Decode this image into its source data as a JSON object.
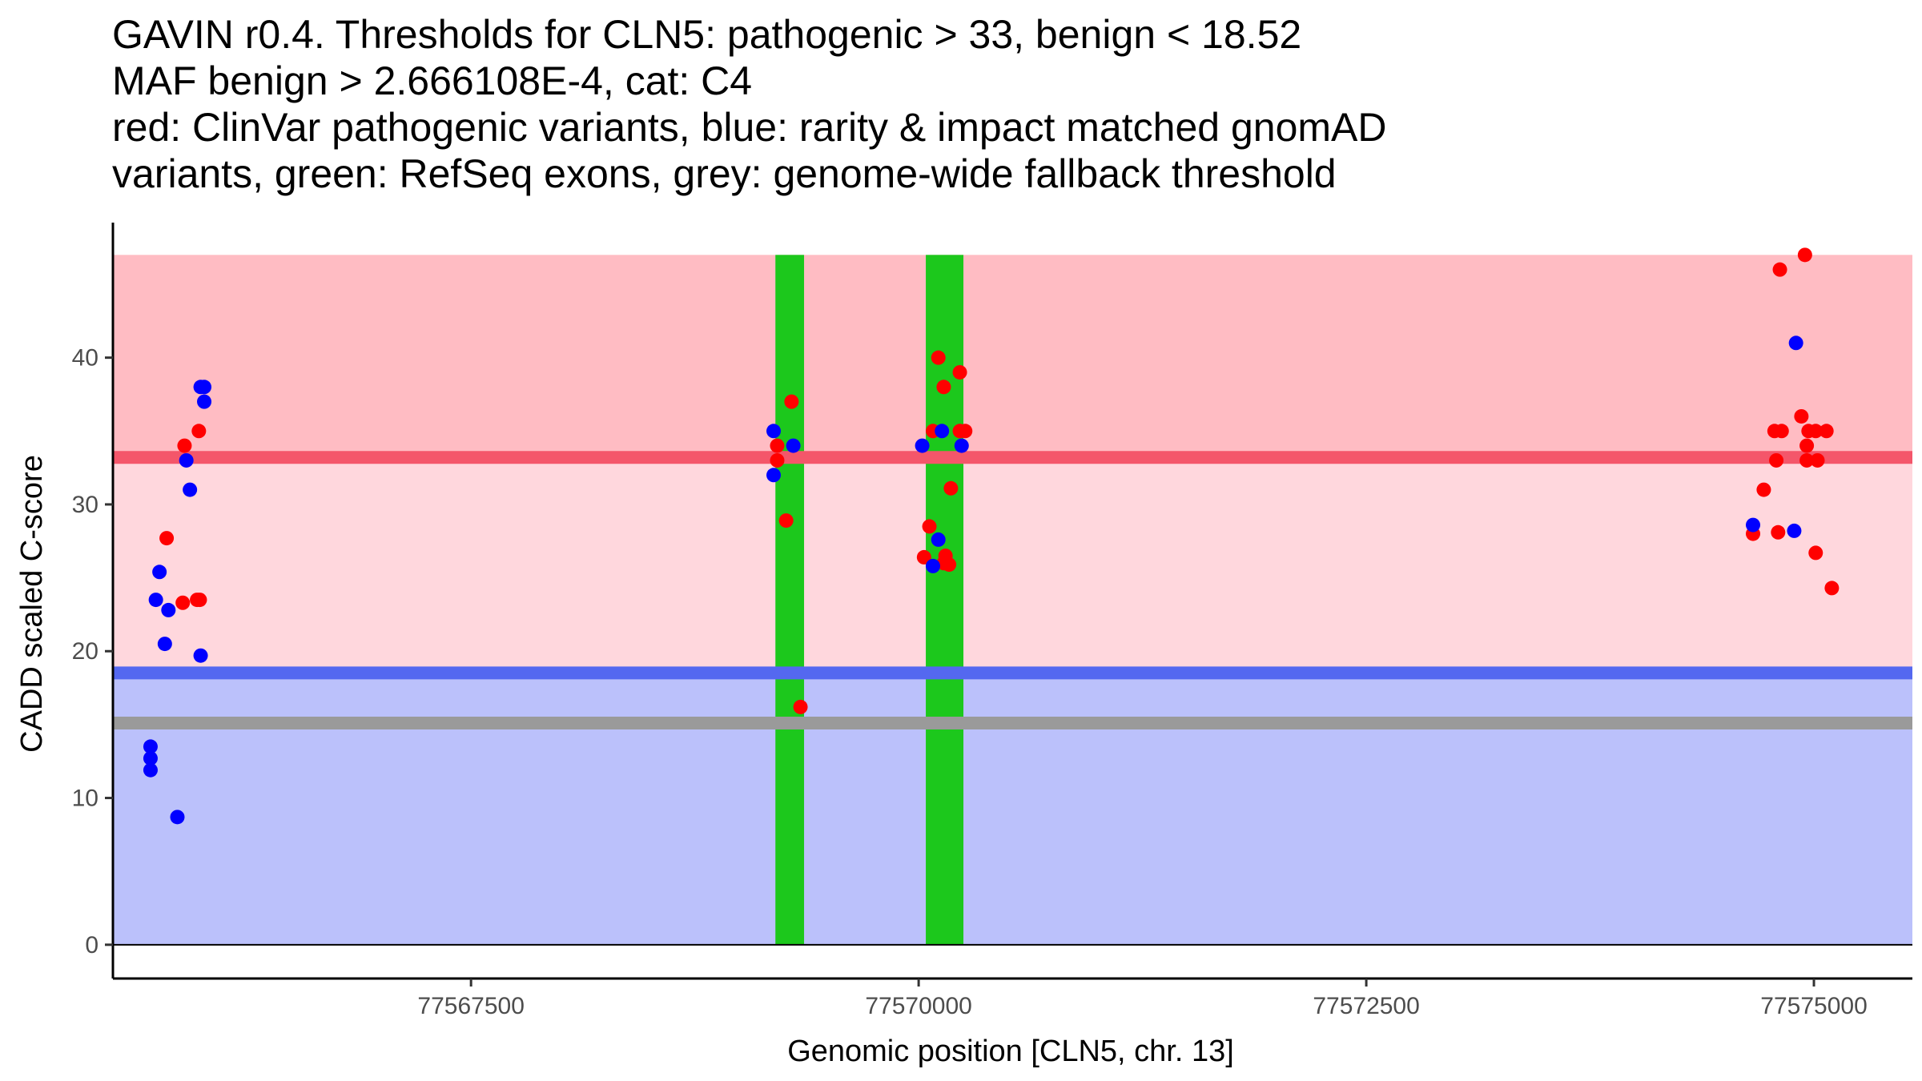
{
  "chart_data": {
    "type": "scatter",
    "title_lines": [
      "GAVIN r0.4. Thresholds for CLN5: pathogenic > 33, benign < 18.52",
      "MAF benign > 2.666108E-4, cat: C4",
      "red: ClinVar pathogenic variants, blue: rarity & impact matched gnomAD",
      "variants, green: RefSeq exons, grey: genome-wide fallback threshold"
    ],
    "xlabel": "Genomic position [CLN5, chr. 13]",
    "ylabel": "CADD scaled C-score",
    "xlim": [
      77565500,
      77575550
    ],
    "ylim": [
      -2.3,
      49.2
    ],
    "x_ticks": [
      77567500,
      77570000,
      77572500,
      77575000
    ],
    "x_tick_labels": [
      "77567500",
      "77570000",
      "77572500",
      "77575000"
    ],
    "y_ticks": [
      0,
      10,
      20,
      30,
      40
    ],
    "y_tick_labels": [
      "0",
      "10",
      "20",
      "30",
      "40"
    ],
    "x_data_range": [
      77565500,
      77575550
    ],
    "thresholds": {
      "pathogenic": 33.2,
      "benign": 18.52,
      "fallback": 15.1,
      "top": 47
    },
    "colors": {
      "pathogenic_band": "#ffbcc3",
      "middle_band": "#ffd7dd",
      "benign_band": "#bbc1fb",
      "pathogenic_line": "#f4566a",
      "benign_line": "#5468f0",
      "fallback_line": "#9a9a9a",
      "exon": "#1cc81c",
      "clinvar": "#ff0000",
      "gnomad": "#0000ff"
    },
    "exons": [
      {
        "start": 77569200,
        "end": 77569360
      },
      {
        "start": 77570040,
        "end": 77570250
      }
    ],
    "series": [
      {
        "name": "ClinVar pathogenic",
        "color": "#ff0000",
        "points": [
          [
            77565800,
            27.7
          ],
          [
            77565890,
            23.3
          ],
          [
            77565900,
            34.0
          ],
          [
            77565970,
            23.5
          ],
          [
            77565985,
            23.5
          ],
          [
            77565980,
            35.0
          ],
          [
            77569210,
            34.0
          ],
          [
            77569210,
            33.0
          ],
          [
            77569260,
            28.9
          ],
          [
            77569290,
            37.0
          ],
          [
            77569340,
            16.2
          ],
          [
            77570030,
            26.4
          ],
          [
            77570060,
            28.5
          ],
          [
            77570080,
            35.0
          ],
          [
            77570110,
            40.0
          ],
          [
            77570140,
            38.0
          ],
          [
            77570150,
            26.5
          ],
          [
            77570140,
            26.0
          ],
          [
            77570170,
            25.9
          ],
          [
            77570180,
            31.1
          ],
          [
            77570230,
            39.0
          ],
          [
            77570230,
            35.0
          ],
          [
            77570260,
            35.0
          ],
          [
            77574660,
            28.0
          ],
          [
            77574720,
            31.0
          ],
          [
            77574780,
            35.0
          ],
          [
            77574790,
            33.0
          ],
          [
            77574800,
            28.1
          ],
          [
            77574820,
            35.0
          ],
          [
            77574810,
            46.0
          ],
          [
            77574930,
            36.0
          ],
          [
            77574960,
            34.0
          ],
          [
            77574960,
            33.0
          ],
          [
            77574970,
            35.0
          ],
          [
            77574950,
            47.0
          ],
          [
            77575010,
            35.0
          ],
          [
            77575020,
            33.0
          ],
          [
            77575010,
            26.7
          ],
          [
            77575070,
            35.0
          ],
          [
            77575100,
            24.3
          ]
        ]
      },
      {
        "name": "gnomAD rarity & impact matched",
        "color": "#0000ff",
        "points": [
          [
            77565710,
            13.5
          ],
          [
            77565710,
            12.7
          ],
          [
            77565710,
            11.9
          ],
          [
            77565740,
            23.5
          ],
          [
            77565760,
            25.4
          ],
          [
            77565790,
            20.5
          ],
          [
            77565810,
            22.8
          ],
          [
            77565860,
            8.7
          ],
          [
            77565910,
            33.0
          ],
          [
            77565930,
            31.0
          ],
          [
            77565990,
            19.7
          ],
          [
            77565990,
            38.0
          ],
          [
            77566010,
            38.0
          ],
          [
            77566010,
            37.0
          ],
          [
            77569190,
            35.0
          ],
          [
            77569190,
            32.0
          ],
          [
            77569300,
            34.0
          ],
          [
            77570020,
            34.0
          ],
          [
            77570080,
            25.8
          ],
          [
            77570110,
            27.6
          ],
          [
            77570130,
            35.0
          ],
          [
            77570240,
            34.0
          ],
          [
            77574660,
            28.6
          ],
          [
            77574890,
            28.2
          ],
          [
            77574900,
            41.0
          ]
        ]
      }
    ]
  }
}
